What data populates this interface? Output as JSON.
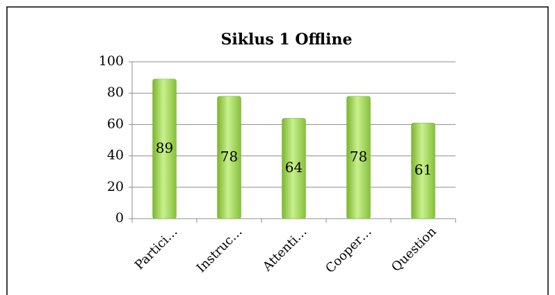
{
  "chart_data": {
    "type": "bar",
    "title": "Siklus 1 Offline",
    "categories": [
      "Partici…",
      "Instruc…",
      "Attenti…",
      "Cooper…",
      "Question"
    ],
    "values": [
      89,
      78,
      64,
      78,
      61
    ],
    "color": "#9ad84f",
    "ylim": [
      0,
      100
    ],
    "yticks": [
      0,
      20,
      40,
      60,
      80,
      100
    ],
    "grid": true
  }
}
